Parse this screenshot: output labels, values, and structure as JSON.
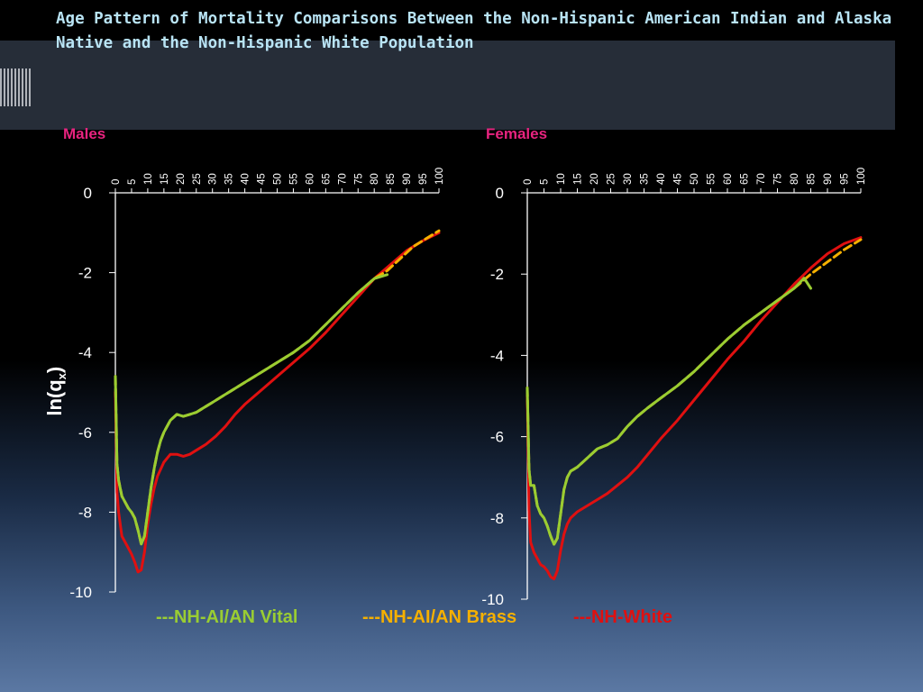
{
  "title": "Age Pattern of Mortality Comparisons Between the Non-Hispanic American Indian and Alaska Native and the Non-Hispanic White Population",
  "colors": {
    "vital": "#9acd32",
    "brass": "#f5b000",
    "white": "#e01010",
    "panel_title": "#e8237f",
    "title": "#b9e4f5"
  },
  "legend": {
    "vital": "---NH-AI/AN Vital",
    "brass": "---NH-AI/AN Brass",
    "white": "---NH-White"
  },
  "chart_data": [
    {
      "type": "line",
      "title": "Males",
      "ylabel": "ln(q",
      "ylabel_sub": "x",
      "ylabel_close": ")",
      "x_ticks": [
        "0",
        "5",
        "10",
        "15",
        "20",
        "25",
        "30",
        "35",
        "40",
        "45",
        "50",
        "55",
        "60",
        "65",
        "70",
        "75",
        "80",
        "85",
        "90",
        "95",
        "100"
      ],
      "y_ticks": [
        "0",
        "-2",
        "-4",
        "-6",
        "-8",
        "-10"
      ],
      "xlim": [
        0,
        100
      ],
      "ylim": [
        -10,
        0
      ],
      "series": [
        {
          "name": "NH-AI/AN Vital",
          "key": "vital",
          "x": [
            0,
            0.5,
            1,
            2,
            3,
            4,
            5,
            6,
            7,
            8,
            9,
            10,
            11,
            12,
            13,
            14,
            15,
            17,
            19,
            21,
            23,
            25,
            27,
            30,
            33,
            36,
            40,
            45,
            50,
            55,
            60,
            65,
            70,
            75,
            80,
            84
          ],
          "y": [
            -4.6,
            -6.8,
            -7.2,
            -7.6,
            -7.75,
            -7.9,
            -8.0,
            -8.15,
            -8.45,
            -8.8,
            -8.6,
            -8.0,
            -7.4,
            -6.9,
            -6.5,
            -6.2,
            -6.0,
            -5.7,
            -5.55,
            -5.6,
            -5.55,
            -5.5,
            -5.4,
            -5.25,
            -5.1,
            -4.95,
            -4.75,
            -4.5,
            -4.25,
            -4.0,
            -3.7,
            -3.3,
            -2.9,
            -2.5,
            -2.15,
            -2.05
          ]
        },
        {
          "name": "NH-AI/AN Brass",
          "key": "brass",
          "x": [
            0,
            0.5,
            1,
            2,
            3,
            4,
            5,
            6,
            7,
            8,
            9,
            10,
            11,
            12,
            13,
            14,
            15,
            17,
            19,
            21,
            23,
            25,
            27,
            30,
            33,
            36,
            40,
            45,
            50,
            55,
            60,
            65,
            70,
            75,
            80,
            84,
            88,
            92,
            96,
            100
          ],
          "y": [
            -4.6,
            -6.8,
            -7.2,
            -7.6,
            -7.75,
            -7.9,
            -8.0,
            -8.15,
            -8.45,
            -8.8,
            -8.6,
            -8.0,
            -7.4,
            -6.9,
            -6.5,
            -6.2,
            -6.0,
            -5.7,
            -5.55,
            -5.6,
            -5.55,
            -5.5,
            -5.4,
            -5.25,
            -5.1,
            -4.95,
            -4.75,
            -4.5,
            -4.25,
            -4.0,
            -3.7,
            -3.3,
            -2.9,
            -2.5,
            -2.15,
            -1.95,
            -1.65,
            -1.35,
            -1.15,
            -0.95
          ]
        },
        {
          "name": "NH-White",
          "key": "white",
          "x": [
            0,
            0.5,
            1,
            2,
            3,
            4,
            5,
            6,
            7,
            8,
            9,
            10,
            11,
            12,
            13,
            15,
            17,
            19,
            21,
            23,
            25,
            28,
            31,
            34,
            37,
            40,
            45,
            50,
            55,
            60,
            65,
            70,
            75,
            80,
            85,
            90,
            95,
            100
          ],
          "y": [
            -5.0,
            -7.5,
            -8.0,
            -8.6,
            -8.75,
            -8.9,
            -9.05,
            -9.25,
            -9.5,
            -9.45,
            -9.0,
            -8.3,
            -7.8,
            -7.4,
            -7.1,
            -6.75,
            -6.55,
            -6.55,
            -6.6,
            -6.55,
            -6.45,
            -6.3,
            -6.1,
            -5.85,
            -5.55,
            -5.3,
            -4.95,
            -4.6,
            -4.25,
            -3.9,
            -3.5,
            -3.05,
            -2.6,
            -2.15,
            -1.8,
            -1.45,
            -1.2,
            -1.0
          ]
        }
      ]
    },
    {
      "type": "line",
      "title": "Females",
      "x_ticks": [
        "0",
        "5",
        "10",
        "15",
        "20",
        "25",
        "30",
        "35",
        "40",
        "45",
        "50",
        "55",
        "60",
        "65",
        "70",
        "75",
        "80",
        "85",
        "90",
        "95",
        "100"
      ],
      "y_ticks": [
        "0",
        "-2",
        "-4",
        "-6",
        "-8",
        "-10"
      ],
      "xlim": [
        0,
        100
      ],
      "ylim": [
        -10,
        0
      ],
      "series": [
        {
          "name": "NH-AI/AN Vital",
          "key": "vital",
          "x": [
            0,
            0.5,
            1,
            2,
            3,
            4,
            5,
            6,
            7,
            8,
            9,
            10,
            11,
            12,
            13,
            14,
            15,
            17,
            19,
            21,
            24,
            27,
            30,
            33,
            36,
            40,
            45,
            50,
            55,
            60,
            65,
            70,
            75,
            80,
            83,
            85
          ],
          "y": [
            -4.8,
            -6.8,
            -7.2,
            -7.2,
            -7.7,
            -7.9,
            -8.0,
            -8.2,
            -8.45,
            -8.65,
            -8.5,
            -7.9,
            -7.3,
            -7.0,
            -6.85,
            -6.8,
            -6.75,
            -6.6,
            -6.45,
            -6.3,
            -6.2,
            -6.05,
            -5.75,
            -5.5,
            -5.3,
            -5.05,
            -4.75,
            -4.4,
            -4.0,
            -3.6,
            -3.25,
            -2.95,
            -2.65,
            -2.35,
            -2.1,
            -2.35
          ]
        },
        {
          "name": "NH-AI/AN Brass",
          "key": "brass",
          "x": [
            0,
            0.5,
            1,
            2,
            3,
            4,
            5,
            6,
            7,
            8,
            9,
            10,
            11,
            12,
            13,
            14,
            15,
            17,
            19,
            21,
            24,
            27,
            30,
            33,
            36,
            40,
            45,
            50,
            55,
            60,
            65,
            70,
            75,
            80,
            85,
            90,
            95,
            100
          ],
          "y": [
            -4.8,
            -6.8,
            -7.2,
            -7.2,
            -7.7,
            -7.9,
            -8.0,
            -8.2,
            -8.45,
            -8.65,
            -8.5,
            -7.9,
            -7.3,
            -7.0,
            -6.85,
            -6.8,
            -6.75,
            -6.6,
            -6.45,
            -6.3,
            -6.2,
            -6.05,
            -5.75,
            -5.5,
            -5.3,
            -5.05,
            -4.75,
            -4.4,
            -4.0,
            -3.6,
            -3.25,
            -2.95,
            -2.65,
            -2.35,
            -2.0,
            -1.7,
            -1.4,
            -1.15
          ]
        },
        {
          "name": "NH-White",
          "key": "white",
          "x": [
            0,
            0.5,
            1,
            2,
            3,
            4,
            5,
            6,
            7,
            8,
            9,
            10,
            11,
            12,
            13,
            15,
            17,
            19,
            21,
            24,
            27,
            30,
            33,
            36,
            40,
            45,
            50,
            55,
            60,
            65,
            70,
            75,
            80,
            85,
            90,
            95,
            100
          ],
          "y": [
            -5.0,
            -7.8,
            -8.6,
            -8.85,
            -9.0,
            -9.15,
            -9.2,
            -9.3,
            -9.45,
            -9.5,
            -9.3,
            -8.8,
            -8.4,
            -8.15,
            -8.0,
            -7.85,
            -7.75,
            -7.65,
            -7.55,
            -7.4,
            -7.2,
            -7.0,
            -6.75,
            -6.45,
            -6.05,
            -5.6,
            -5.1,
            -4.6,
            -4.1,
            -3.65,
            -3.15,
            -2.7,
            -2.25,
            -1.85,
            -1.5,
            -1.25,
            -1.1
          ]
        }
      ]
    }
  ]
}
